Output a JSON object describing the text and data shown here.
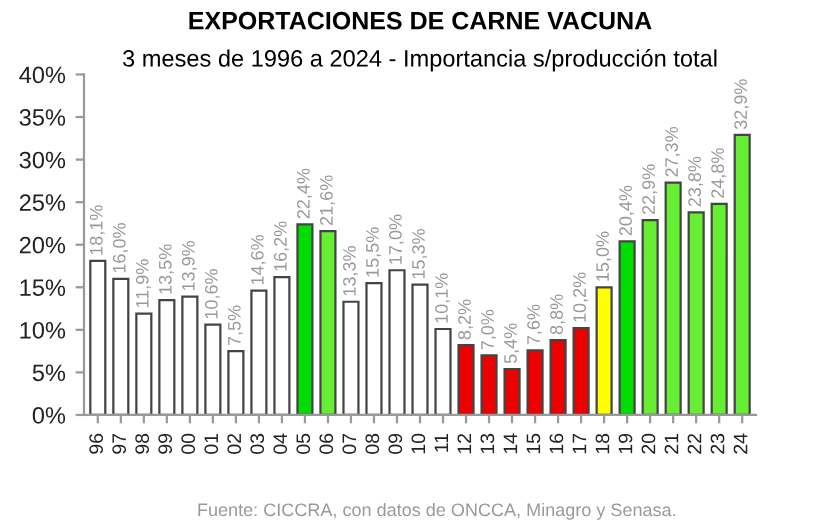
{
  "chart_data": {
    "type": "bar",
    "title": "EXPORTACIONES DE CARNE VACUNA",
    "subtitle": "3 meses de 1996 a 2024 - Importancia s/producción total",
    "categories": [
      "96",
      "97",
      "98",
      "99",
      "00",
      "01",
      "02",
      "03",
      "04",
      "05",
      "06",
      "07",
      "08",
      "09",
      "10",
      "11",
      "12",
      "13",
      "14",
      "15",
      "16",
      "17",
      "18",
      "19",
      "20",
      "21",
      "22",
      "23",
      "24"
    ],
    "values": [
      18.1,
      16.0,
      11.9,
      13.5,
      13.9,
      10.6,
      7.5,
      14.6,
      16.2,
      22.4,
      21.6,
      13.3,
      15.5,
      17.0,
      15.3,
      10.1,
      8.2,
      7.0,
      5.4,
      7.6,
      8.8,
      10.2,
      15.0,
      20.4,
      22.9,
      27.3,
      23.8,
      24.8,
      32.9
    ],
    "value_labels": [
      "18,1%",
      "16,0%",
      "11,9%",
      "13,5%",
      "13,9%",
      "10,6%",
      "7,5%",
      "14,6%",
      "16,2%",
      "22,4%",
      "21,6%",
      "13,3%",
      "15,5%",
      "17,0%",
      "15,3%",
      "10,1%",
      "8,2%",
      "7,0%",
      "5,4%",
      "7,6%",
      "8,8%",
      "10,2%",
      "15,0%",
      "20,4%",
      "22,9%",
      "27,3%",
      "23,8%",
      "24,8%",
      "32,9%"
    ],
    "colors": [
      "#ffffff",
      "#ffffff",
      "#ffffff",
      "#ffffff",
      "#ffffff",
      "#ffffff",
      "#ffffff",
      "#ffffff",
      "#ffffff",
      "#00dd00",
      "#66ee33",
      "#ffffff",
      "#ffffff",
      "#ffffff",
      "#ffffff",
      "#ffffff",
      "#ee0000",
      "#ee0000",
      "#ee0000",
      "#ee0000",
      "#ee0000",
      "#ee0000",
      "#ffff00",
      "#00dd00",
      "#66ee33",
      "#66ee33",
      "#66ee33",
      "#66ee33",
      "#66ee33"
    ],
    "ylim": [
      0,
      40
    ],
    "yticks": [
      {
        "value": 0,
        "label": "0%"
      },
      {
        "value": 5,
        "label": "5%"
      },
      {
        "value": 10,
        "label": "10%"
      },
      {
        "value": 15,
        "label": "15%"
      },
      {
        "value": 20,
        "label": "20%"
      },
      {
        "value": 25,
        "label": "25%"
      },
      {
        "value": 30,
        "label": "30%"
      },
      {
        "value": 35,
        "label": "35%"
      },
      {
        "value": 40,
        "label": "40%"
      }
    ],
    "grid": false,
    "legend": false,
    "annotations": [
      "Fuente: CICCRA, con datos de ONCCA, Minagro y Senasa."
    ]
  }
}
